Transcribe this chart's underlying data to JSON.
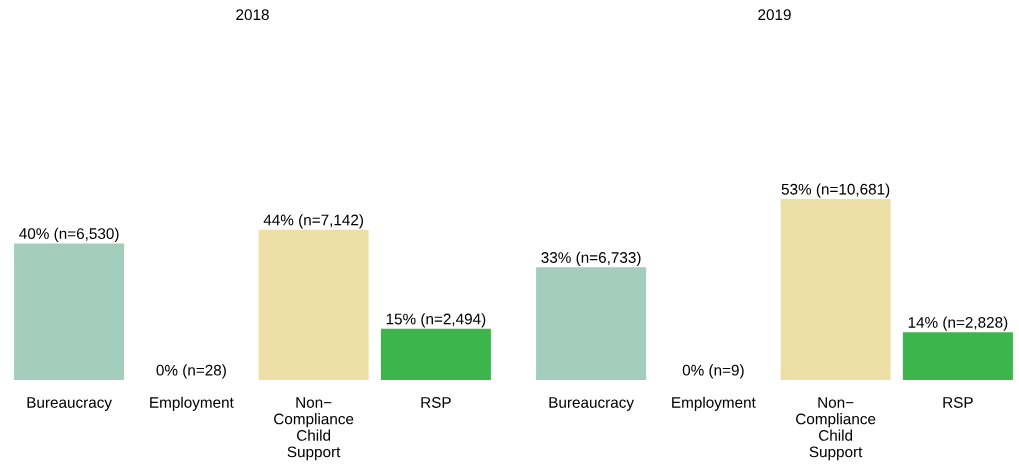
{
  "chart_data": [
    {
      "type": "bar",
      "title": "2018",
      "categories": [
        "Bureaucracy",
        "Employment",
        "Non−\nCompliance\nChild\nSupport",
        "RSP"
      ],
      "values": [
        40,
        0,
        44,
        15
      ],
      "colors": [
        "#a3cdbd",
        "#aed6f1",
        "#ede0a6",
        "#3cb54a"
      ],
      "value_labels": [
        "40% (n=6,530)",
        "0% (n=28)",
        "44% (n=7,142)",
        "15% (n=2,494)"
      ],
      "tick_labels": "x",
      "grid": false,
      "legend": false
    },
    {
      "type": "bar",
      "title": "2019",
      "categories": [
        "Bureaucracy",
        "Employment",
        "Non−\nCompliance\nChild\nSupport",
        "RSP"
      ],
      "values": [
        33,
        0,
        53,
        14
      ],
      "colors": [
        "#a3cdbd",
        "#aed6f1",
        "#ede0a6",
        "#3cb54a"
      ],
      "value_labels": [
        "33% (n=6,733)",
        "0% (n=9)",
        "53% (n=10,681)",
        "14% (n=2,828)"
      ],
      "tick_labels": "x",
      "grid": false,
      "legend": false
    }
  ]
}
